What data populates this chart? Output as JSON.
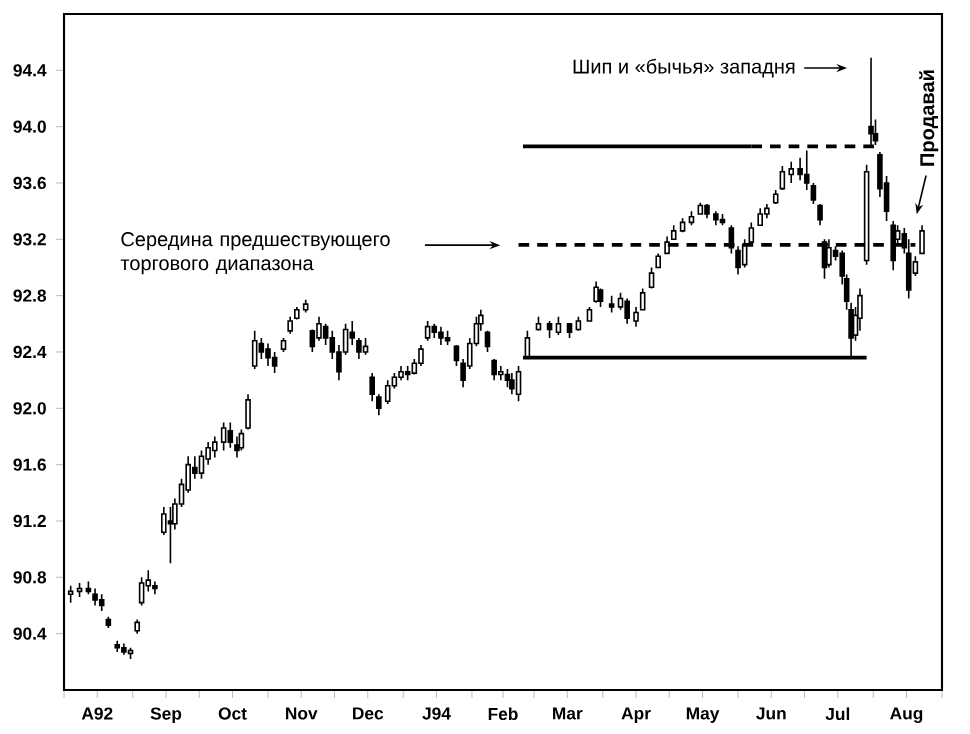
{
  "chart_data": {
    "type": "candlestick",
    "ylim": [
      90.0,
      94.8
    ],
    "yticks": [
      {
        "value": 90.4,
        "label": "90.4"
      },
      {
        "value": 90.8,
        "label": "90.8"
      },
      {
        "value": 91.2,
        "label": "91.2"
      },
      {
        "value": 91.6,
        "label": "91.6"
      },
      {
        "value": 92.0,
        "label": "92.0"
      },
      {
        "value": 92.4,
        "label": "92.4"
      },
      {
        "value": 92.8,
        "label": "92.8"
      },
      {
        "value": 93.2,
        "label": "93.2"
      },
      {
        "value": 93.6,
        "label": "93.6"
      },
      {
        "value": 94.0,
        "label": "94.0"
      },
      {
        "value": 94.4,
        "label": "94.4"
      }
    ],
    "xlim": [
      "1993-08-01",
      "1994-09-01"
    ],
    "xticks": [
      {
        "value": "1993-08-01",
        "label": null
      },
      {
        "value": "1993-08-16",
        "label": "A92"
      },
      {
        "value": "1993-09-01",
        "label": null
      },
      {
        "value": "1993-09-16",
        "label": "Sep"
      },
      {
        "value": "1993-10-01",
        "label": null
      },
      {
        "value": "1993-10-16",
        "label": "Oct"
      },
      {
        "value": "1993-11-01",
        "label": null
      },
      {
        "value": "1993-11-16",
        "label": "Nov"
      },
      {
        "value": "1993-12-01",
        "label": null
      },
      {
        "value": "1993-12-16",
        "label": "Dec"
      },
      {
        "value": "1994-01-01",
        "label": null
      },
      {
        "value": "1994-01-16",
        "label": "J94"
      },
      {
        "value": "1994-02-01",
        "label": null
      },
      {
        "value": "1994-02-15",
        "label": "Feb"
      },
      {
        "value": "1994-03-01",
        "label": null
      },
      {
        "value": "1994-03-16",
        "label": "Mar"
      },
      {
        "value": "1994-04-01",
        "label": null
      },
      {
        "value": "1994-04-16",
        "label": "Apr"
      },
      {
        "value": "1994-05-01",
        "label": null
      },
      {
        "value": "1994-05-16",
        "label": "May"
      },
      {
        "value": "1994-06-01",
        "label": null
      },
      {
        "value": "1994-06-16",
        "label": "Jun"
      },
      {
        "value": "1994-07-01",
        "label": null
      },
      {
        "value": "1994-07-16",
        "label": "Jul"
      },
      {
        "value": "1994-08-01",
        "label": null
      },
      {
        "value": "1994-08-16",
        "label": "Aug"
      },
      {
        "value": "1994-09-01",
        "label": null
      }
    ],
    "x": [
      "1993-08-04",
      "1993-08-08",
      "1993-08-12",
      "1993-08-15",
      "1993-08-18",
      "1993-08-21",
      "1993-08-25",
      "1993-08-28",
      "1993-08-31",
      "1993-09-03",
      "1993-09-05",
      "1993-09-08",
      "1993-09-11",
      "1993-09-15",
      "1993-09-18",
      "1993-09-20",
      "1993-09-23",
      "1993-09-26",
      "1993-09-29",
      "1993-10-02",
      "1993-10-05",
      "1993-10-08",
      "1993-10-12",
      "1993-10-15",
      "1993-10-18",
      "1993-10-20",
      "1993-10-23",
      "1993-10-26",
      "1993-10-29",
      "1993-11-01",
      "1993-11-04",
      "1993-11-08",
      "1993-11-11",
      "1993-11-14",
      "1993-11-18",
      "1993-11-21",
      "1993-11-24",
      "1993-11-27",
      "1993-11-30",
      "1993-12-03",
      "1993-12-06",
      "1993-12-09",
      "1993-12-12",
      "1993-12-15",
      "1993-12-18",
      "1993-12-21",
      "1993-12-25",
      "1993-12-28",
      "1993-12-31",
      "1994-01-03",
      "1994-01-06",
      "1994-01-09",
      "1994-01-12",
      "1994-01-15",
      "1994-01-18",
      "1994-01-21",
      "1994-01-25",
      "1994-01-28",
      "1994-01-31",
      "1994-02-03",
      "1994-02-05",
      "1994-02-08",
      "1994-02-11",
      "1994-02-14",
      "1994-02-17",
      "1994-02-19",
      "1994-02-22",
      "1994-02-26",
      "1994-03-03",
      "1994-03-08",
      "1994-03-12",
      "1994-03-17",
      "1994-03-21",
      "1994-03-26",
      "1994-03-29",
      "1994-03-31",
      "1994-04-05",
      "1994-04-09",
      "1994-04-12",
      "1994-04-16",
      "1994-04-19",
      "1994-04-23",
      "1994-04-26",
      "1994-04-30",
      "1994-05-03",
      "1994-05-07",
      "1994-05-11",
      "1994-05-15",
      "1994-05-18",
      "1994-05-22",
      "1994-05-25",
      "1994-05-29",
      "1994-06-01",
      "1994-06-04",
      "1994-06-07",
      "1994-06-11",
      "1994-06-14",
      "1994-06-18",
      "1994-06-21",
      "1994-06-25",
      "1994-06-29",
      "1994-07-02",
      "1994-07-05",
      "1994-07-08",
      "1994-07-10",
      "1994-07-12",
      "1994-07-15",
      "1994-07-18",
      "1994-07-20",
      "1994-07-22",
      "1994-07-24",
      "1994-07-26",
      "1994-07-29",
      "1994-07-31",
      "1994-08-02",
      "1994-08-04",
      "1994-08-07",
      "1994-08-10",
      "1994-08-12",
      "1994-08-15",
      "1994-08-17",
      "1994-08-20",
      "1994-08-23"
    ],
    "ohlc": [
      [
        90.68,
        90.74,
        90.62,
        90.7
      ],
      [
        90.7,
        90.76,
        90.66,
        90.72
      ],
      [
        90.72,
        90.77,
        90.68,
        90.7
      ],
      [
        90.68,
        90.72,
        90.6,
        90.64
      ],
      [
        90.64,
        90.68,
        90.56,
        90.6
      ],
      [
        90.5,
        90.52,
        90.44,
        90.46
      ],
      [
        90.32,
        90.35,
        90.27,
        90.3
      ],
      [
        90.3,
        90.33,
        90.25,
        90.27
      ],
      [
        90.26,
        90.3,
        90.22,
        90.28
      ],
      [
        90.42,
        90.5,
        90.4,
        90.48
      ],
      [
        90.62,
        90.8,
        90.6,
        90.76
      ],
      [
        90.74,
        90.85,
        90.7,
        90.78
      ],
      [
        90.74,
        90.77,
        90.68,
        90.72
      ],
      [
        91.12,
        91.3,
        91.1,
        91.25
      ],
      [
        91.2,
        91.3,
        90.9,
        91.18
      ],
      [
        91.18,
        91.36,
        91.14,
        91.32
      ],
      [
        91.32,
        91.5,
        91.3,
        91.46
      ],
      [
        91.42,
        91.66,
        91.4,
        91.6
      ],
      [
        91.58,
        91.66,
        91.5,
        91.54
      ],
      [
        91.54,
        91.7,
        91.5,
        91.66
      ],
      [
        91.64,
        91.76,
        91.6,
        91.72
      ],
      [
        91.7,
        91.8,
        91.65,
        91.76
      ],
      [
        91.76,
        91.9,
        91.7,
        91.86
      ],
      [
        91.84,
        91.9,
        91.72,
        91.76
      ],
      [
        91.74,
        91.8,
        91.65,
        91.7
      ],
      [
        91.72,
        91.85,
        91.7,
        91.82
      ],
      [
        91.86,
        92.1,
        91.85,
        92.06
      ],
      [
        92.3,
        92.55,
        92.28,
        92.48
      ],
      [
        92.46,
        92.5,
        92.35,
        92.4
      ],
      [
        92.42,
        92.46,
        92.3,
        92.36
      ],
      [
        92.36,
        92.4,
        92.25,
        92.3
      ],
      [
        92.42,
        92.5,
        92.4,
        92.48
      ],
      [
        92.55,
        92.65,
        92.53,
        92.62
      ],
      [
        92.64,
        92.72,
        92.63,
        92.7
      ],
      [
        92.7,
        92.77,
        92.68,
        92.74
      ],
      [
        92.55,
        92.56,
        92.4,
        92.44
      ],
      [
        92.5,
        92.65,
        92.48,
        92.6
      ],
      [
        92.58,
        92.6,
        92.45,
        92.5
      ],
      [
        92.5,
        92.55,
        92.35,
        92.4
      ],
      [
        92.4,
        92.45,
        92.2,
        92.26
      ],
      [
        92.4,
        92.6,
        92.38,
        92.56
      ],
      [
        92.54,
        92.62,
        92.45,
        92.5
      ],
      [
        92.48,
        92.5,
        92.35,
        92.4
      ],
      [
        92.4,
        92.5,
        92.38,
        92.44
      ],
      [
        92.22,
        92.25,
        92.05,
        92.1
      ],
      [
        92.08,
        92.1,
        91.95,
        92.0
      ],
      [
        92.05,
        92.2,
        92.03,
        92.16
      ],
      [
        92.16,
        92.25,
        92.14,
        92.22
      ],
      [
        92.22,
        92.3,
        92.2,
        92.26
      ],
      [
        92.26,
        92.3,
        92.2,
        92.24
      ],
      [
        92.25,
        92.35,
        92.24,
        92.32
      ],
      [
        92.32,
        92.45,
        92.3,
        92.42
      ],
      [
        92.5,
        92.62,
        92.48,
        92.58
      ],
      [
        92.58,
        92.6,
        92.5,
        92.54
      ],
      [
        92.54,
        92.58,
        92.45,
        92.5
      ],
      [
        92.5,
        92.55,
        92.45,
        92.48
      ],
      [
        92.44,
        92.45,
        92.3,
        92.34
      ],
      [
        92.32,
        92.35,
        92.15,
        92.2
      ],
      [
        92.3,
        92.5,
        92.28,
        92.46
      ],
      [
        92.46,
        92.65,
        92.44,
        92.6
      ],
      [
        92.6,
        92.7,
        92.55,
        92.66
      ],
      [
        92.54,
        92.55,
        92.4,
        92.44
      ],
      [
        92.34,
        92.35,
        92.2,
        92.24
      ],
      [
        92.24,
        92.3,
        92.2,
        92.26
      ],
      [
        92.24,
        92.28,
        92.15,
        92.2
      ],
      [
        92.2,
        92.25,
        92.1,
        92.14
      ],
      [
        92.1,
        92.3,
        92.05,
        92.26
      ],
      [
        92.36,
        92.55,
        92.35,
        92.5
      ],
      [
        92.56,
        92.65,
        92.55,
        92.6
      ],
      [
        92.6,
        92.62,
        92.5,
        92.56
      ],
      [
        92.54,
        92.65,
        92.52,
        92.6
      ],
      [
        92.6,
        92.6,
        92.5,
        92.54
      ],
      [
        92.56,
        92.65,
        92.55,
        92.62
      ],
      [
        92.62,
        92.72,
        92.62,
        92.7
      ],
      [
        92.76,
        92.9,
        92.75,
        92.86
      ],
      [
        92.84,
        92.85,
        92.72,
        92.76
      ],
      [
        92.74,
        92.8,
        92.68,
        92.72
      ],
      [
        92.72,
        92.82,
        92.7,
        92.78
      ],
      [
        92.76,
        92.78,
        92.6,
        92.64
      ],
      [
        92.62,
        92.72,
        92.58,
        92.68
      ],
      [
        92.7,
        92.85,
        92.7,
        92.82
      ],
      [
        92.86,
        93.0,
        92.85,
        92.96
      ],
      [
        93.0,
        93.1,
        93.0,
        93.08
      ],
      [
        93.1,
        93.22,
        93.1,
        93.18
      ],
      [
        93.2,
        93.3,
        93.2,
        93.26
      ],
      [
        93.26,
        93.35,
        93.25,
        93.32
      ],
      [
        93.32,
        93.4,
        93.3,
        93.36
      ],
      [
        93.38,
        93.46,
        93.38,
        93.44
      ],
      [
        93.44,
        93.45,
        93.35,
        93.38
      ],
      [
        93.38,
        93.4,
        93.3,
        93.34
      ],
      [
        93.34,
        93.38,
        93.3,
        93.32
      ],
      [
        93.28,
        93.3,
        93.1,
        93.14
      ],
      [
        93.12,
        93.15,
        92.95,
        93.0
      ],
      [
        93.02,
        93.2,
        93.0,
        93.16
      ],
      [
        93.18,
        93.32,
        93.18,
        93.28
      ],
      [
        93.3,
        93.42,
        93.3,
        93.38
      ],
      [
        93.38,
        93.45,
        93.35,
        93.42
      ],
      [
        93.46,
        93.55,
        93.45,
        93.52
      ],
      [
        93.56,
        93.72,
        93.55,
        93.68
      ],
      [
        93.66,
        93.75,
        93.6,
        93.7
      ],
      [
        93.7,
        93.78,
        93.62,
        93.66
      ],
      [
        93.66,
        93.83,
        93.55,
        93.6
      ],
      [
        93.58,
        93.6,
        93.45,
        93.48
      ],
      [
        93.44,
        93.45,
        93.3,
        93.34
      ],
      [
        93.18,
        93.2,
        92.92,
        93.0
      ],
      [
        93.02,
        93.2,
        93.0,
        93.14
      ],
      [
        93.12,
        93.15,
        93.05,
        93.08
      ],
      [
        93.1,
        93.12,
        92.88,
        92.94
      ],
      [
        92.92,
        92.95,
        92.7,
        92.76
      ],
      [
        92.7,
        92.75,
        92.37,
        92.5
      ],
      [
        92.52,
        92.72,
        92.48,
        92.66
      ],
      [
        92.64,
        92.85,
        92.55,
        92.8
      ],
      [
        93.05,
        93.73,
        93.02,
        93.68
      ],
      [
        94.0,
        94.49,
        93.87,
        93.95
      ],
      [
        93.95,
        94.05,
        93.87,
        93.9
      ],
      [
        93.8,
        93.82,
        93.5,
        93.56
      ],
      [
        93.6,
        93.65,
        93.33,
        93.4
      ],
      [
        93.3,
        93.33,
        92.98,
        93.05
      ],
      [
        93.2,
        93.3,
        93.17,
        93.26
      ],
      [
        93.24,
        93.28,
        93.1,
        93.14
      ],
      [
        93.1,
        93.2,
        92.78,
        92.84
      ],
      [
        92.96,
        93.08,
        92.94,
        93.04
      ],
      [
        93.1,
        93.3,
        93.1,
        93.26
      ]
    ],
    "series": [
      {
        "type": "line",
        "color": "#000000",
        "line_style": "solid",
        "x": [
          "1994-02-24",
          "1994-06-07"
        ],
        "values": [
          93.86,
          93.86
        ]
      },
      {
        "type": "line",
        "color": "#000000",
        "line_style": "dashed",
        "x": [
          "1994-06-07",
          "1994-08-04"
        ],
        "values": [
          93.86,
          93.86
        ]
      },
      {
        "type": "line",
        "color": "#000000",
        "line_style": "dashed",
        "x": [
          "1994-02-22",
          "1994-08-20"
        ],
        "values": [
          93.16,
          93.16
        ]
      },
      {
        "type": "line",
        "color": "#000000",
        "line_style": "solid",
        "x": [
          "1994-02-24",
          "1994-07-29"
        ],
        "values": [
          92.36,
          92.36
        ]
      }
    ],
    "marker": "none",
    "annotations": [
      "Середина предшествующего торгового диапазона",
      "Шип и «бычья» западня",
      {
        "text": "Продавай",
        "x": "1994-08-20",
        "y": 93.35
      }
    ]
  }
}
